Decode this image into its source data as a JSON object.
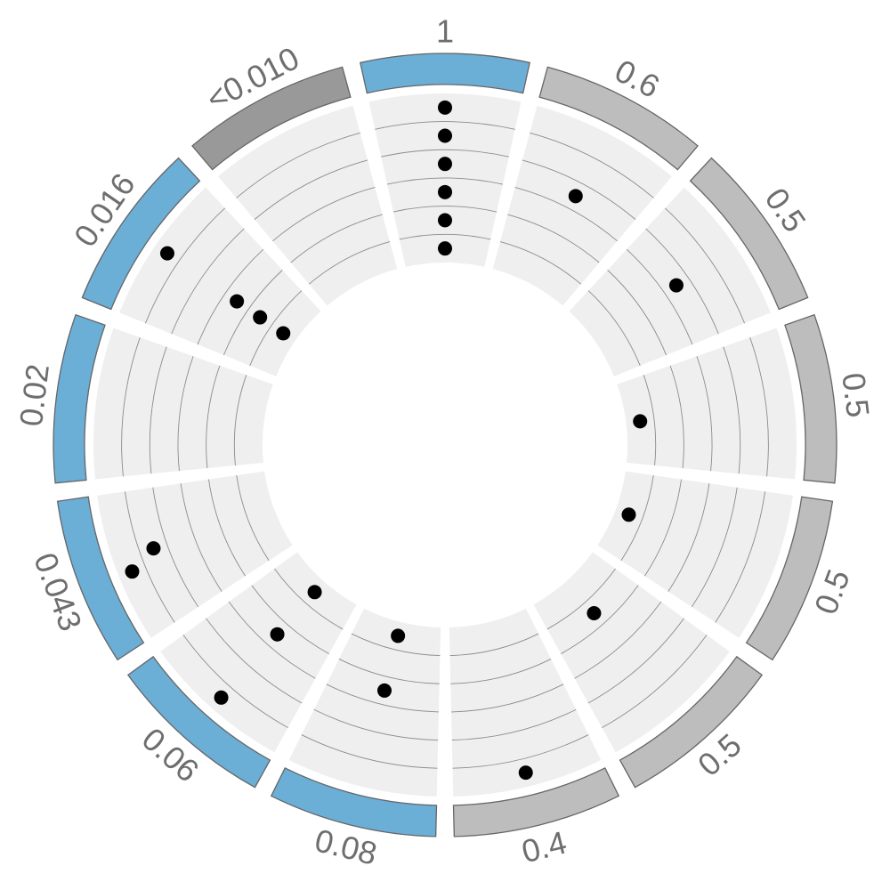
{
  "chart_data": {
    "type": "radial",
    "rings": 6,
    "colors": {
      "significant": "#6baed6",
      "not_significant": "#bdbdbd",
      "strongest": "#999999",
      "band": "#efefef",
      "guide": "#8c8c8c",
      "point": "#000000",
      "label": "#6e6e6e"
    },
    "segments": [
      {
        "label": "1",
        "color": "#6baed6",
        "points": [
          {
            "ring": 1,
            "offset": 0.5
          },
          {
            "ring": 2,
            "offset": 0.5
          },
          {
            "ring": 3,
            "offset": 0.5
          },
          {
            "ring": 4,
            "offset": 0.5
          },
          {
            "ring": 5,
            "offset": 0.5
          },
          {
            "ring": 6,
            "offset": 0.5
          }
        ]
      },
      {
        "label": "0.6",
        "color": "#bdbdbd",
        "points": [
          {
            "ring": 3,
            "offset": 0.5
          }
        ]
      },
      {
        "label": "0.5",
        "color": "#bdbdbd",
        "points": [
          {
            "ring": 3,
            "offset": 0.5
          }
        ]
      },
      {
        "label": "0.5",
        "color": "#bdbdbd",
        "points": [
          {
            "ring": 6,
            "offset": 0.5
          }
        ]
      },
      {
        "label": "0.5",
        "color": "#bdbdbd",
        "points": [
          {
            "ring": 6,
            "offset": 0.5
          }
        ]
      },
      {
        "label": "0.5",
        "color": "#bdbdbd",
        "points": [
          {
            "ring": 5,
            "offset": 0.5
          }
        ]
      },
      {
        "label": "0.4",
        "color": "#bdbdbd",
        "points": [
          {
            "ring": 1,
            "offset": 0.5
          }
        ]
      },
      {
        "label": "0.08",
        "color": "#6baed6",
        "points": [
          {
            "ring": 4,
            "offset": 0.5
          },
          {
            "ring": 6,
            "offset": 0.5
          }
        ]
      },
      {
        "label": "0.06",
        "color": "#6baed6",
        "points": [
          {
            "ring": 1,
            "offset": 0.5
          },
          {
            "ring": 4,
            "offset": 0.5
          },
          {
            "ring": 6,
            "offset": 0.5
          }
        ]
      },
      {
        "label": "0.043",
        "color": "#6baed6",
        "points": [
          {
            "ring": 1,
            "offset": 0.45
          },
          {
            "ring": 2,
            "offset": 0.55
          }
        ]
      },
      {
        "label": "0.02",
        "color": "#6baed6",
        "points": []
      },
      {
        "label": "0.016",
        "color": "#6baed6",
        "points": [
          {
            "ring": 1,
            "offset": 0.5
          },
          {
            "ring": 4,
            "offset": 0.5
          },
          {
            "ring": 5,
            "offset": 0.5
          },
          {
            "ring": 6,
            "offset": 0.5
          }
        ]
      },
      {
        "label": "<0.010",
        "color": "#999999",
        "points": []
      }
    ]
  }
}
